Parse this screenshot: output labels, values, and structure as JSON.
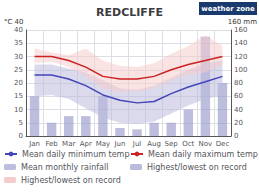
{
  "chart_data": {
    "type": "line",
    "title": "REDCLIFFE",
    "categories": [
      "Jan",
      "Feb",
      "Mar",
      "Apr",
      "May",
      "Jun",
      "Jul",
      "Aug",
      "Sep",
      "Oct",
      "Nov",
      "Dec"
    ],
    "series": [
      {
        "name": "Mean daily minimum temp",
        "type": "line",
        "color": "#4444bb",
        "values": [
          23.0,
          23.0,
          21.5,
          19.0,
          15.5,
          13.5,
          12.5,
          13.0,
          16.0,
          18.5,
          20.5,
          22.5
        ]
      },
      {
        "name": "Mean daily maximum temp",
        "type": "line",
        "color": "#cc2222",
        "values": [
          30.0,
          30.0,
          28.5,
          26.0,
          22.5,
          21.5,
          21.5,
          22.5,
          25.0,
          27.0,
          28.5,
          30.0
        ]
      },
      {
        "name": "Mean monthly rainfall",
        "type": "bar",
        "color": "#9999cc",
        "axis": "y2",
        "values": [
          60,
          20,
          30,
          30,
          60,
          12,
          10,
          20,
          20,
          40,
          150,
          80
        ]
      },
      {
        "name": "Highest/lowest on record",
        "type": "band",
        "color": "#bbbbdd",
        "values": [
          [
            15.0,
            27.0
          ],
          [
            15.5,
            27.0
          ],
          [
            14.0,
            25.5
          ],
          [
            10.5,
            24.0
          ],
          [
            7.0,
            21.0
          ],
          [
            5.0,
            18.0
          ],
          [
            4.5,
            17.5
          ],
          [
            5.5,
            19.0
          ],
          [
            8.5,
            22.0
          ],
          [
            11.5,
            25.0
          ],
          [
            14.0,
            27.5
          ],
          [
            15.5,
            28.5
          ]
        ]
      },
      {
        "name": "Highest/lowest on record",
        "type": "band",
        "color": "#f5cccc",
        "values": [
          [
            27.5,
            33.0
          ],
          [
            28.0,
            31.5
          ],
          [
            26.0,
            30.5
          ],
          [
            22.5,
            33.0
          ],
          [
            18.0,
            28.5
          ],
          [
            16.5,
            26.5
          ],
          [
            17.0,
            26.0
          ],
          [
            18.0,
            27.5
          ],
          [
            21.0,
            31.0
          ],
          [
            23.0,
            34.0
          ],
          [
            24.0,
            38.0
          ],
          [
            27.0,
            34.0
          ]
        ]
      }
    ],
    "ylim": [
      0,
      40
    ],
    "yticks": [
      0,
      5,
      10,
      15,
      20,
      25,
      30,
      35,
      40
    ],
    "y2lim": [
      0,
      160
    ],
    "y2ticks": [
      0,
      20,
      40,
      60,
      80,
      100,
      120,
      140,
      160
    ],
    "grid": true,
    "legend": "bottom",
    "annotations": [
      {
        "text": "°C 40"
      },
      {
        "text": "160 mm"
      },
      {
        "text": "weather zone",
        "color": "#1a3a6e"
      }
    ]
  }
}
